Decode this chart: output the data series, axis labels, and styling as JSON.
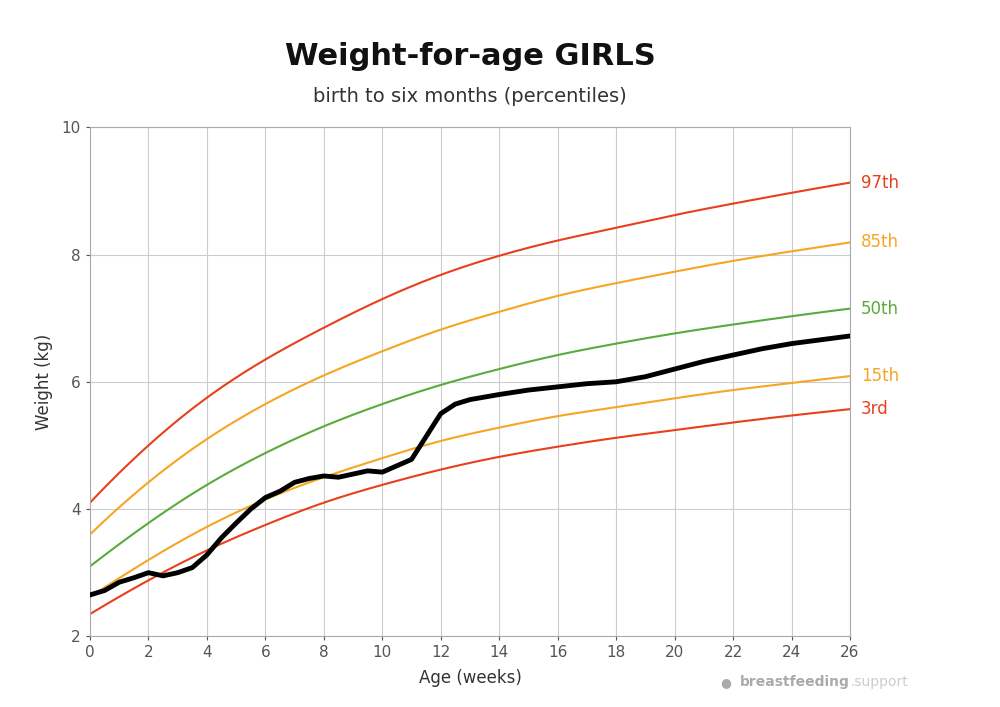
{
  "title": "Weight-for-age GIRLS",
  "subtitle": "birth to six months (percentiles)",
  "xlabel": "Age (weeks)",
  "ylabel": "Weight (kg)",
  "xlim": [
    0,
    26
  ],
  "ylim": [
    2,
    10
  ],
  "xticks": [
    0,
    2,
    4,
    6,
    8,
    10,
    12,
    14,
    16,
    18,
    20,
    22,
    24,
    26
  ],
  "yticks": [
    2,
    4,
    6,
    8,
    10
  ],
  "background_color": "#ffffff",
  "grid_color": "#cccccc",
  "percentiles": {
    "97th": {
      "color": "#e8401c",
      "label": "97th",
      "x": [
        0,
        2,
        4,
        6,
        8,
        10,
        12,
        14,
        16,
        18,
        20,
        22,
        24,
        26
      ],
      "y": [
        4.1,
        5.0,
        5.75,
        6.35,
        6.85,
        7.3,
        7.68,
        7.98,
        8.22,
        8.42,
        8.62,
        8.8,
        8.97,
        9.13
      ]
    },
    "85th": {
      "color": "#f5a623",
      "label": "85th",
      "x": [
        0,
        2,
        4,
        6,
        8,
        10,
        12,
        14,
        16,
        18,
        20,
        22,
        24,
        26
      ],
      "y": [
        3.6,
        4.42,
        5.1,
        5.65,
        6.1,
        6.48,
        6.82,
        7.1,
        7.35,
        7.55,
        7.73,
        7.9,
        8.05,
        8.19
      ]
    },
    "50th": {
      "color": "#5aaa3c",
      "label": "50th",
      "x": [
        0,
        2,
        4,
        6,
        8,
        10,
        12,
        14,
        16,
        18,
        20,
        22,
        24,
        26
      ],
      "y": [
        3.1,
        3.78,
        4.38,
        4.88,
        5.3,
        5.65,
        5.95,
        6.2,
        6.42,
        6.6,
        6.76,
        6.9,
        7.03,
        7.15
      ]
    },
    "15th": {
      "color": "#f5a623",
      "label": "15th",
      "x": [
        0,
        2,
        4,
        6,
        8,
        10,
        12,
        14,
        16,
        18,
        20,
        22,
        24,
        26
      ],
      "y": [
        2.62,
        3.2,
        3.72,
        4.15,
        4.5,
        4.8,
        5.07,
        5.28,
        5.46,
        5.6,
        5.74,
        5.87,
        5.98,
        6.09
      ]
    },
    "3rd": {
      "color": "#e8401c",
      "label": "3rd",
      "x": [
        0,
        2,
        4,
        6,
        8,
        10,
        12,
        14,
        16,
        18,
        20,
        22,
        24,
        26
      ],
      "y": [
        2.35,
        2.88,
        3.35,
        3.75,
        4.1,
        4.38,
        4.62,
        4.82,
        4.98,
        5.12,
        5.24,
        5.36,
        5.47,
        5.57
      ]
    }
  },
  "infant_weight": {
    "color": "#000000",
    "linewidth": 3.5,
    "x": [
      0,
      0.5,
      1,
      1.5,
      2,
      2.5,
      3,
      3.5,
      4,
      4.5,
      5,
      5.5,
      6,
      6.5,
      7,
      7.5,
      8,
      8.5,
      9,
      9.5,
      10,
      11,
      12,
      12.5,
      13,
      14,
      15,
      16,
      17,
      18,
      19,
      20,
      21,
      22,
      23,
      24,
      25,
      26
    ],
    "y": [
      2.65,
      2.72,
      2.85,
      2.92,
      3.0,
      2.95,
      3.0,
      3.08,
      3.28,
      3.55,
      3.78,
      4.0,
      4.18,
      4.28,
      4.42,
      4.48,
      4.52,
      4.5,
      4.55,
      4.6,
      4.58,
      4.78,
      5.5,
      5.65,
      5.72,
      5.8,
      5.87,
      5.92,
      5.97,
      6.0,
      6.08,
      6.2,
      6.32,
      6.42,
      6.52,
      6.6,
      6.66,
      6.72
    ]
  },
  "watermark_bold": "breastfeeding",
  "watermark_light": ".support",
  "title_fontsize": 22,
  "subtitle_fontsize": 14,
  "axis_label_fontsize": 12,
  "tick_fontsize": 11,
  "percentile_label_fontsize": 12
}
